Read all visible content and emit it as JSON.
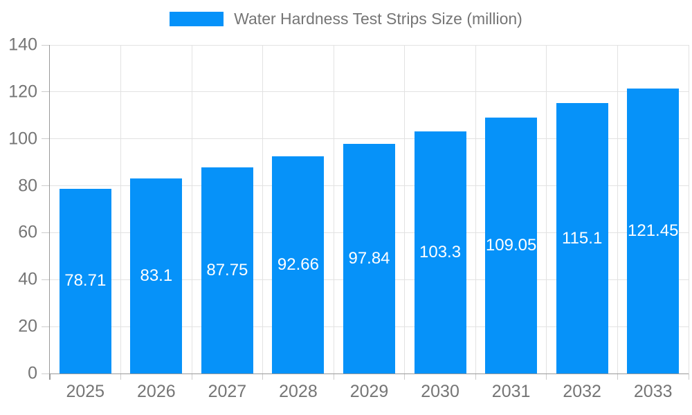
{
  "legend": {
    "label": "Water Hardness Test Strips Size (million)"
  },
  "chart_data": {
    "type": "bar",
    "title": "Water Hardness Test Strips Size (million)",
    "xlabel": "",
    "ylabel": "",
    "categories": [
      "2025",
      "2026",
      "2027",
      "2028",
      "2029",
      "2030",
      "2031",
      "2032",
      "2033"
    ],
    "values": [
      78.71,
      83.1,
      87.75,
      92.66,
      97.84,
      103.3,
      109.05,
      115.1,
      121.45
    ],
    "value_labels": [
      "78.71",
      "83.1",
      "87.75",
      "92.66",
      "97.84",
      "103.3",
      "109.05",
      "115.1",
      "121.45"
    ],
    "ylim": [
      0,
      140
    ],
    "yticks": [
      0,
      20,
      40,
      60,
      80,
      100,
      120,
      140
    ],
    "grid": true,
    "legend_position": "top-center",
    "colors": {
      "bar": "#0692f9",
      "axis_line": "#999999",
      "grid_line": "#e2e2e2",
      "tick_line": "#cccccc",
      "axis_text": "#757575",
      "legend_text": "#757575",
      "bar_value_text": "#ffffff",
      "background": "#ffffff"
    }
  }
}
